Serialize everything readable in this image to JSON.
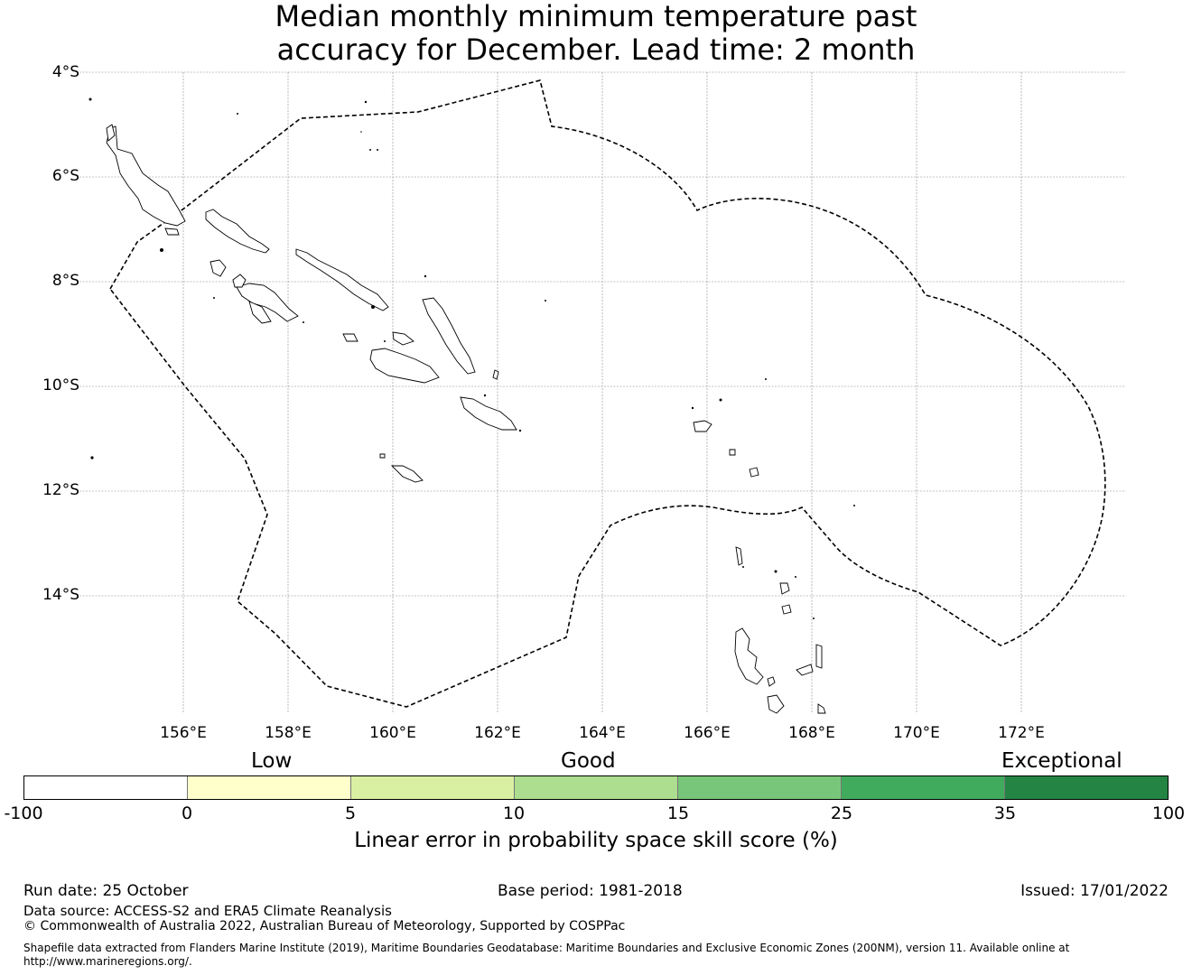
{
  "title": {
    "line1": "Median monthly minimum temperature past",
    "line2": "accuracy for December. Lead time: 2 month"
  },
  "map": {
    "lat_labels": [
      "4°S",
      "6°S",
      "8°S",
      "10°S",
      "12°S",
      "14°S"
    ],
    "lon_labels": [
      "156°E",
      "158°E",
      "160°E",
      "162°E",
      "164°E",
      "166°E",
      "168°E",
      "170°E",
      "172°E"
    ],
    "boundary_style": "dashed",
    "region": "Solomon Islands EEZ"
  },
  "legend": {
    "categories": [
      "Low",
      "Good",
      "Exceptional"
    ],
    "ticks": [
      "-100",
      "0",
      "5",
      "10",
      "15",
      "25",
      "35",
      "100"
    ],
    "colors": [
      "#ffffff",
      "#ffffcc",
      "#d9f0a3",
      "#addd8e",
      "#78c679",
      "#41ab5d",
      "#238443"
    ],
    "title": "Linear error in probability space skill score (%)"
  },
  "footer": {
    "run_date": "Run date: 25 October",
    "base_period": "Base period: 1981-2018",
    "issued": "Issued: 17/01/2022",
    "data_source": "Data source: ACCESS-S2 and ERA5 Climate Reanalysis",
    "copyright": "© Commonwealth of Australia 2022, Australian Bureau of Meteorology, Supported by COSPPac",
    "shapefile_1": "Shapefile data extracted from Flanders Marine Institute (2019), Maritime Boundaries Geodatabase: Maritime Boundaries and Exclusive Economic Zones (200NM), version 11. Available online at",
    "shapefile_2": "http://www.marineregions.org/."
  }
}
